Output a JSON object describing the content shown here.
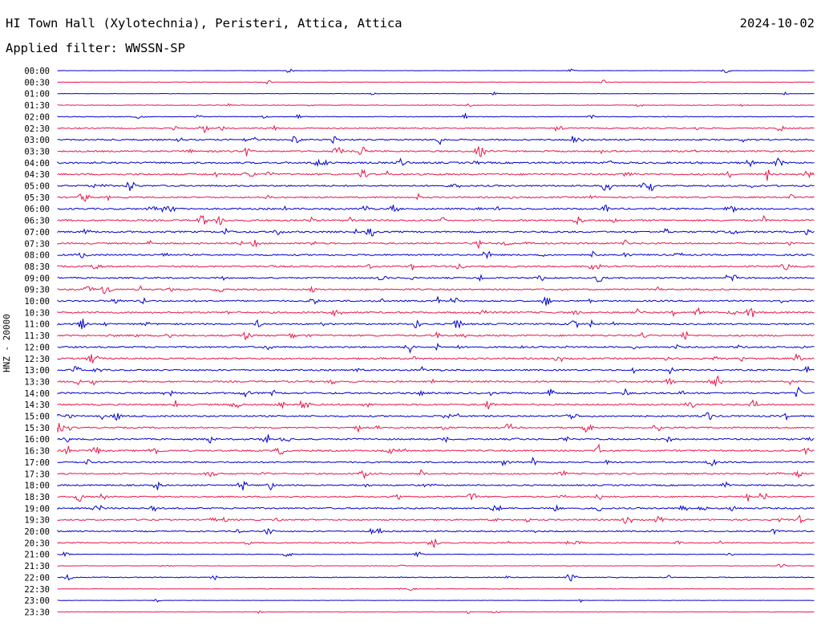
{
  "header": {
    "station": "HI Town Hall (Xylotechnia), Peristeri, Attica, Attica",
    "date": "2024-10-02",
    "filter": "Applied filter: WWSSN-SP",
    "channel_label": "HNZ - 20000"
  },
  "colors": {
    "even_trace": "#0000cc",
    "odd_trace": "#e8174a",
    "background": "#ffffff"
  },
  "chart_data": {
    "type": "line",
    "title": "HI Town Hall (Xylotechnia), Peristeri, Attica, Attica",
    "ylabel": "HNZ - 20000",
    "rows": [
      "00:00",
      "00:30",
      "01:00",
      "01:30",
      "02:00",
      "02:30",
      "03:00",
      "03:30",
      "04:00",
      "04:30",
      "05:00",
      "05:30",
      "06:00",
      "06:30",
      "07:00",
      "07:30",
      "08:00",
      "08:30",
      "09:00",
      "09:30",
      "10:00",
      "10:30",
      "11:00",
      "11:30",
      "12:00",
      "12:30",
      "13:00",
      "13:30",
      "14:00",
      "14:30",
      "15:00",
      "15:30",
      "16:00",
      "16:30",
      "17:00",
      "17:30",
      "18:00",
      "18:30",
      "19:00",
      "19:30",
      "20:00",
      "20:30",
      "21:00",
      "21:30",
      "22:00",
      "22:30",
      "23:00",
      "23:30"
    ],
    "noise_level": [
      0.2,
      0.3,
      0.3,
      0.5,
      0.6,
      1.0,
      1.2,
      1.3,
      1.5,
      1.4,
      1.3,
      1.2,
      1.4,
      1.4,
      1.4,
      1.3,
      1.3,
      1.3,
      1.2,
      1.2,
      1.3,
      1.4,
      1.3,
      1.4,
      1.3,
      1.3,
      1.3,
      1.4,
      1.4,
      1.3,
      1.3,
      1.2,
      1.3,
      1.3,
      1.2,
      1.2,
      1.2,
      1.2,
      1.3,
      1.2,
      1.1,
      1.0,
      0.5,
      0.4,
      0.7,
      0.3,
      0.2,
      0.4
    ],
    "legend": "none",
    "grid": false
  }
}
